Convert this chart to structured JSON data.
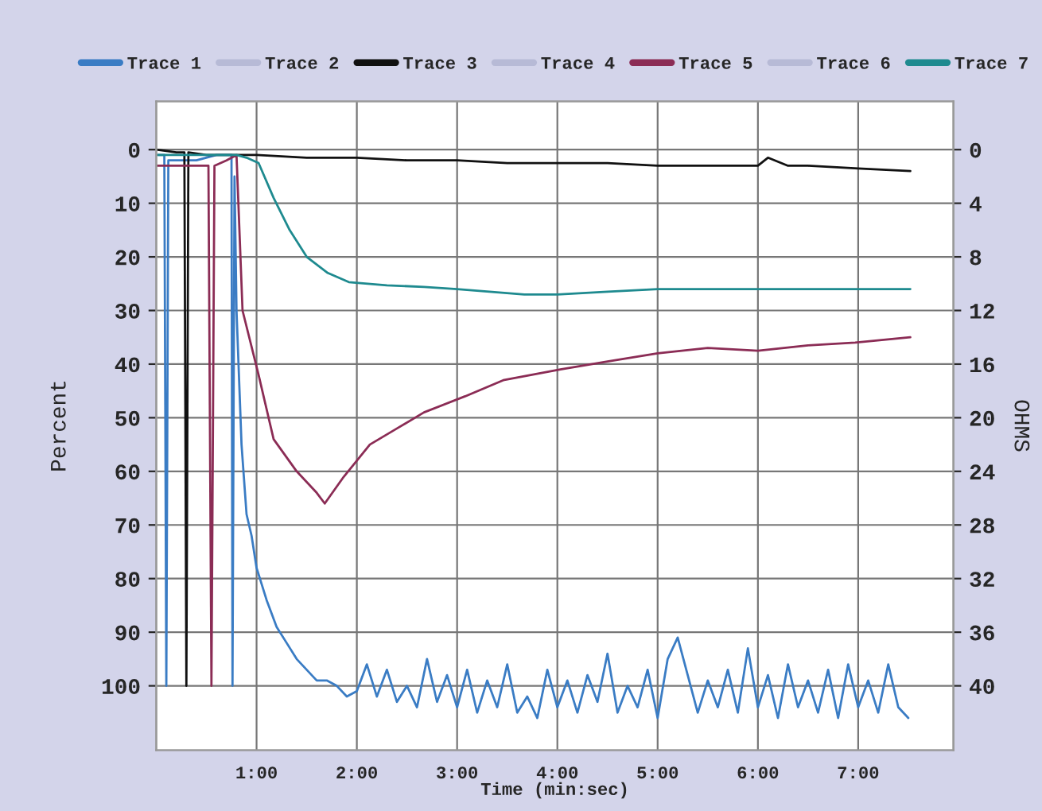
{
  "chart_data": {
    "type": "line",
    "xlabel": "Time (min:sec)",
    "ylabel": "Percent",
    "y2label": "OHMS",
    "xlim": [
      0,
      7.95
    ],
    "xticks": [
      {
        "value": 1,
        "label": "1:00"
      },
      {
        "value": 2,
        "label": "2:00"
      },
      {
        "value": 3,
        "label": "3:00"
      },
      {
        "value": 4,
        "label": "4:00"
      },
      {
        "value": 5,
        "label": "5:00"
      },
      {
        "value": 6,
        "label": "6:00"
      },
      {
        "value": 7,
        "label": "7:00"
      }
    ],
    "ylim": [
      112,
      -9
    ],
    "yticks": [
      0,
      10,
      20,
      30,
      40,
      50,
      60,
      70,
      80,
      90,
      100
    ],
    "y2lim": [
      44.8,
      -3.6
    ],
    "y2ticks": [
      0,
      4,
      8,
      12,
      16,
      20,
      24,
      28,
      32,
      36,
      40
    ],
    "grid": true,
    "legend": "top",
    "marker": "none",
    "line_style": "solid",
    "series": [
      {
        "name": "Trace 1",
        "color": "#3a7cc4",
        "x": [
          0.02,
          0.08,
          0.1,
          0.12,
          0.2,
          0.4,
          0.6,
          0.75,
          0.76,
          0.78,
          0.8,
          0.85,
          0.9,
          0.95,
          1.0,
          1.1,
          1.2,
          1.3,
          1.4,
          1.5,
          1.6,
          1.7,
          1.8,
          1.9,
          2.0,
          2.1,
          2.2,
          2.3,
          2.4,
          2.5,
          2.6,
          2.7,
          2.8,
          2.9,
          3.0,
          3.1,
          3.2,
          3.3,
          3.4,
          3.5,
          3.6,
          3.7,
          3.8,
          3.9,
          4.0,
          4.1,
          4.2,
          4.3,
          4.4,
          4.5,
          4.6,
          4.7,
          4.8,
          4.9,
          5.0,
          5.1,
          5.2,
          5.3,
          5.4,
          5.5,
          5.6,
          5.7,
          5.8,
          5.9,
          6.0,
          6.1,
          6.2,
          6.3,
          6.4,
          6.5,
          6.6,
          6.7,
          6.8,
          6.9,
          7.0,
          7.1,
          7.2,
          7.3,
          7.4,
          7.5
        ],
        "values": [
          1,
          1,
          100,
          2,
          2,
          2,
          1,
          1,
          100,
          5,
          30,
          55,
          68,
          72,
          78,
          84,
          89,
          92,
          95,
          97,
          99,
          99,
          100,
          102,
          101,
          96,
          102,
          97,
          103,
          100,
          104,
          95,
          103,
          98,
          104,
          97,
          105,
          99,
          104,
          96,
          105,
          102,
          106,
          97,
          104,
          99,
          105,
          98,
          103,
          94,
          105,
          100,
          104,
          97,
          106,
          95,
          91,
          98,
          105,
          99,
          104,
          97,
          105,
          93,
          104,
          98,
          106,
          96,
          104,
          99,
          105,
          97,
          106,
          96,
          104,
          99,
          105,
          96,
          104,
          106
        ]
      },
      {
        "name": "Trace 2",
        "color": "#b7bad6"
      },
      {
        "name": "Trace 3",
        "color": "#111111",
        "x": [
          0,
          0.2,
          0.28,
          0.3,
          0.32,
          0.5,
          1,
          1.5,
          2,
          2.5,
          3,
          3.5,
          4,
          4.5,
          5,
          5.5,
          6,
          6.1,
          6.3,
          6.5,
          7,
          7.52
        ],
        "values": [
          0,
          0.5,
          0.5,
          100,
          0.5,
          1,
          1,
          1.5,
          1.5,
          2,
          2,
          2.5,
          2.5,
          2.5,
          3,
          3,
          3,
          1.5,
          3,
          3,
          3.5,
          4
        ]
      },
      {
        "name": "Trace 4",
        "color": "#b7bad6"
      },
      {
        "name": "Trace 5",
        "color": "#8b2c55",
        "x": [
          0,
          0.5,
          0.52,
          0.55,
          0.58,
          0.7,
          0.8,
          0.86,
          1.02,
          1.17,
          1.4,
          1.6,
          1.68,
          1.87,
          2.13,
          2.4,
          2.67,
          3.08,
          3.46,
          4.03,
          4.5,
          5.0,
          5.5,
          6.0,
          6.5,
          6.97,
          7.52
        ],
        "values": [
          3,
          3,
          3,
          100,
          3,
          2,
          1,
          30,
          42,
          54,
          60,
          64,
          66,
          61,
          55,
          52,
          49,
          46,
          43,
          41,
          39.5,
          38,
          37,
          37.5,
          36.5,
          36,
          35
        ]
      },
      {
        "name": "Trace 6",
        "color": "#b7bad6"
      },
      {
        "name": "Trace 7",
        "color": "#1e8a8f",
        "x": [
          0,
          0.5,
          0.8,
          0.9,
          1.02,
          1.17,
          1.33,
          1.5,
          1.71,
          1.92,
          2.3,
          2.67,
          3.0,
          3.67,
          4.0,
          4.5,
          5.0,
          5.5,
          6.0,
          6.5,
          7.0,
          7.52
        ],
        "values": [
          1,
          1,
          1,
          1.5,
          2.5,
          9,
          15,
          20,
          23,
          24.7,
          25.3,
          25.6,
          26,
          27,
          27,
          26.5,
          26,
          26,
          26,
          26,
          26,
          26
        ]
      }
    ]
  }
}
